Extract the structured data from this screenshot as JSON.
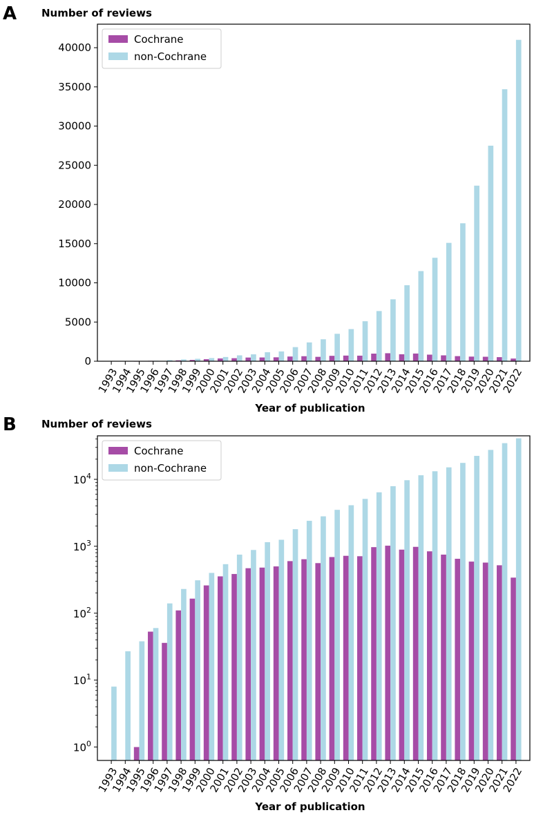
{
  "colors": {
    "cochrane": "#a64ca6",
    "non_cochrane": "#add8e6"
  },
  "chart_data": [
    {
      "panel": "A",
      "type": "bar",
      "title": "",
      "ylabel": "Number of reviews",
      "xlabel": "Year of publication",
      "yscale": "linear",
      "ylim": [
        0,
        43000
      ],
      "yticks": [
        0,
        5000,
        10000,
        15000,
        20000,
        25000,
        30000,
        35000,
        40000
      ],
      "ytick_labels": [
        "0",
        "5000",
        "10000",
        "15000",
        "20000",
        "25000",
        "30000",
        "35000",
        "40000"
      ],
      "legend": [
        "Cochrane",
        "non-Cochrane"
      ],
      "legend_position": "top-left",
      "categories": [
        "1993",
        "1994",
        "1995",
        "1996",
        "1997",
        "1998",
        "1999",
        "2000",
        "2001",
        "2002",
        "2003",
        "2004",
        "2005",
        "2006",
        "2007",
        "2008",
        "2009",
        "2010",
        "2011",
        "2012",
        "2013",
        "2014",
        "2015",
        "2016",
        "2017",
        "2018",
        "2019",
        "2020",
        "2021",
        "2022"
      ],
      "series": [
        {
          "name": "Cochrane",
          "values": [
            0,
            0,
            1,
            53,
            36,
            110,
            165,
            260,
            355,
            385,
            470,
            480,
            500,
            600,
            640,
            560,
            690,
            720,
            710,
            970,
            1020,
            890,
            980,
            840,
            750,
            650,
            590,
            570,
            520,
            340
          ]
        },
        {
          "name": "non-Cochrane",
          "values": [
            8,
            27,
            38,
            60,
            140,
            230,
            310,
            400,
            540,
            750,
            880,
            1150,
            1250,
            1800,
            2400,
            2800,
            3500,
            4100,
            5100,
            6400,
            7900,
            9700,
            11500,
            13200,
            15100,
            17600,
            22400,
            27500,
            34700,
            41000
          ]
        }
      ]
    },
    {
      "panel": "B",
      "type": "bar",
      "title": "",
      "ylabel": "Number of reviews",
      "xlabel": "Year of publication",
      "yscale": "log",
      "ylim_exp": [
        -0.2,
        4.65
      ],
      "yticks_exp": [
        0,
        1,
        2,
        3,
        4
      ],
      "ytick_base": "10",
      "ytick_exps": [
        "0",
        "1",
        "2",
        "3",
        "4"
      ],
      "legend": [
        "Cochrane",
        "non-Cochrane"
      ],
      "legend_position": "top-left",
      "categories": [
        "1993",
        "1994",
        "1995",
        "1996",
        "1997",
        "1998",
        "1999",
        "2000",
        "2001",
        "2002",
        "2003",
        "2004",
        "2005",
        "2006",
        "2007",
        "2008",
        "2009",
        "2010",
        "2011",
        "2012",
        "2013",
        "2014",
        "2015",
        "2016",
        "2017",
        "2018",
        "2019",
        "2020",
        "2021",
        "2022"
      ],
      "series": [
        {
          "name": "Cochrane",
          "values": [
            0,
            0,
            1,
            53,
            36,
            110,
            165,
            260,
            355,
            385,
            470,
            480,
            500,
            600,
            640,
            560,
            690,
            720,
            710,
            970,
            1020,
            890,
            980,
            840,
            750,
            650,
            590,
            570,
            520,
            340
          ]
        },
        {
          "name": "non-Cochrane",
          "values": [
            8,
            27,
            38,
            60,
            140,
            230,
            310,
            400,
            540,
            750,
            880,
            1150,
            1250,
            1800,
            2400,
            2800,
            3500,
            4100,
            5100,
            6400,
            7900,
            9700,
            11500,
            13200,
            15100,
            17600,
            22400,
            27500,
            34700,
            41000
          ]
        }
      ]
    }
  ]
}
